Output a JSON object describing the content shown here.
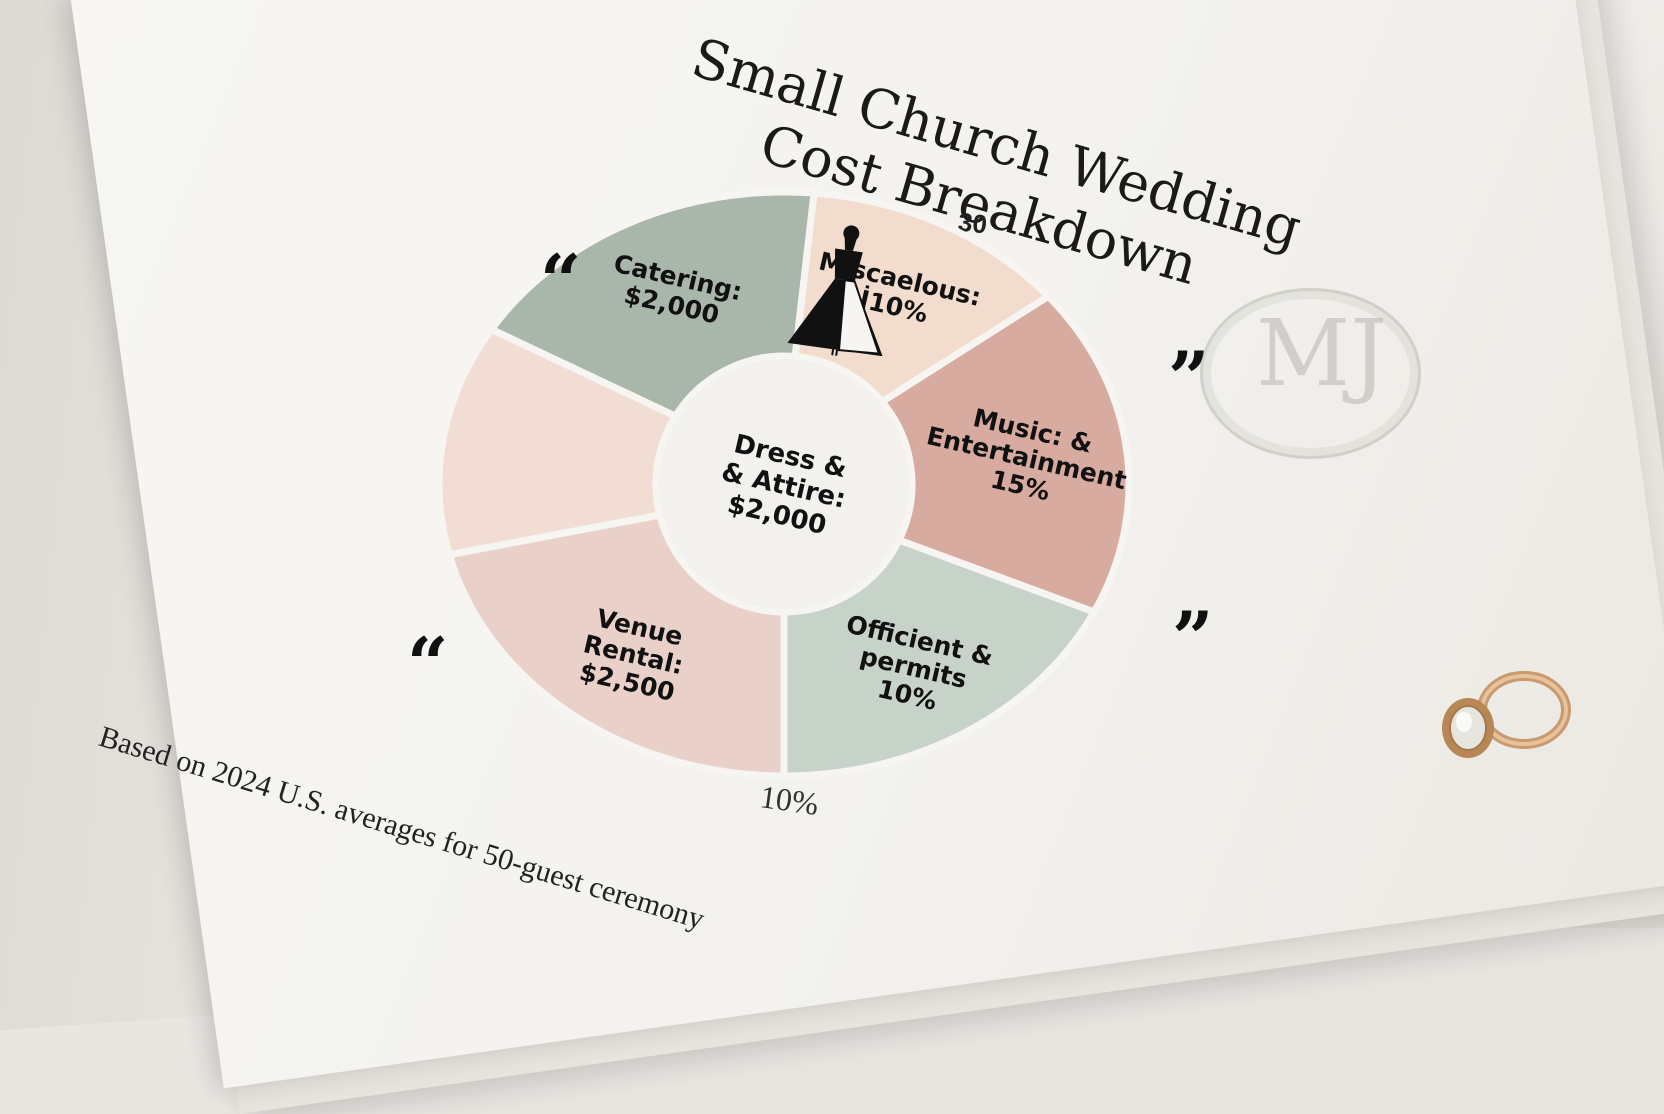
{
  "title": "Small Church Wedding Cost Breakdown",
  "title_lines": [
    "Small Church Wedding",
    "Cost Breakdown"
  ],
  "top_label": "30",
  "center_label": [
    "Dress &",
    "& Attire:",
    "$2,000"
  ],
  "bottom_label": "10%",
  "footnote": "Based on 2024 U.S. averages for 50-guest ceremony",
  "quotes": {
    "left_open": "“",
    "right_close": "”"
  },
  "colors": {
    "venue": "#e9d1ca",
    "dress": "#f1ddd4",
    "catering": "#a9b7ab",
    "misc": "#f1dccd",
    "music": "#d8aba1",
    "officiant": "#c7d3c9",
    "center": "#f2f1ee"
  },
  "chart_data": {
    "type": "pie",
    "title": "Small Church Wedding Cost Breakdown",
    "slices": [
      {
        "label_lines": [
          "Venue",
          "Rental:",
          "$2,500"
        ],
        "label": "Venue Rental: $2,500",
        "value": 2500,
        "color": "#e9d1ca"
      },
      {
        "label_lines": [],
        "label": "",
        "value": 2000,
        "color": "#f1ddd4",
        "icon": "dress-icon"
      },
      {
        "label_lines": [
          "Catering:",
          "$2,000"
        ],
        "label": "Catering: $2,000",
        "value": 2000,
        "color": "#a9b7ab"
      },
      {
        "label_lines": [
          "Miscaelous:",
          "İ10%"
        ],
        "label": "Miscaelous: İ10%",
        "value": 10,
        "color": "#f1dccd"
      },
      {
        "label_lines": [
          "Music: &",
          "Entertainment",
          "15%"
        ],
        "label": "Music: & Entertainment 15%",
        "value": 15,
        "color": "#d8aba1"
      },
      {
        "label_lines": [
          "Officient &",
          "permits",
          "10%"
        ],
        "label": "Officient & permits 10%",
        "value": 10,
        "color": "#c7d3c9"
      }
    ]
  }
}
